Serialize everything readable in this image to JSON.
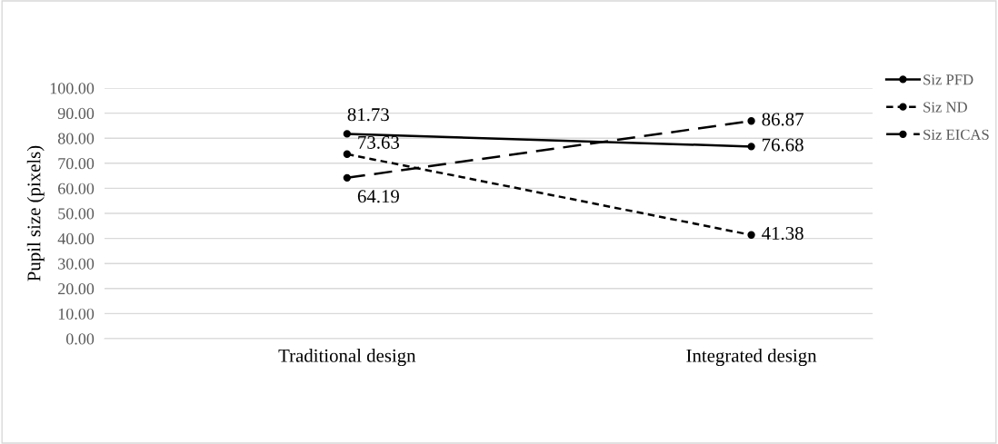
{
  "chart_data": {
    "type": "line",
    "ylabel": "Pupil size (pixels)",
    "categories": [
      "Traditional design",
      "Integrated design"
    ],
    "series": [
      {
        "name": "Siz PFD",
        "color": "#000000",
        "line_style": "solid",
        "values": [
          81.73,
          76.68
        ]
      },
      {
        "name": "Siz ND",
        "color": "#000000",
        "line_style": "dotted",
        "values": [
          73.63,
          41.38
        ]
      },
      {
        "name": "Siz EICAS",
        "color": "#000000",
        "line_style": "dashed",
        "values": [
          64.19,
          86.87
        ]
      }
    ],
    "ylim": [
      0,
      100
    ],
    "yticks": [
      {
        "value": 0,
        "label": "0.00"
      },
      {
        "value": 10,
        "label": "10.00"
      },
      {
        "value": 20,
        "label": "20.00"
      },
      {
        "value": 30,
        "label": "30.00"
      },
      {
        "value": 40,
        "label": "40.00"
      },
      {
        "value": 50,
        "label": "50.00"
      },
      {
        "value": 60,
        "label": "60.00"
      },
      {
        "value": 70,
        "label": "70.00"
      },
      {
        "value": 80,
        "label": "80.00"
      },
      {
        "value": 90,
        "label": "90.00"
      },
      {
        "value": 100,
        "label": "100.00"
      }
    ],
    "grid": "y",
    "legend": "right",
    "marker": "circle",
    "data_labels": true
  }
}
